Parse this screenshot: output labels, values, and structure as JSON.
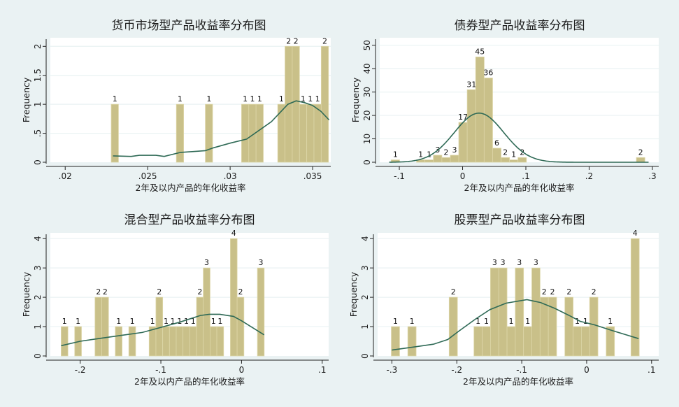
{
  "colors": {
    "background": "#eaf2f3",
    "plot": "#ffffff",
    "bar": "#c9c089",
    "bar_edge": "#ddd6a8",
    "curve": "#2f6a56",
    "grid": "#eaf2f3"
  },
  "chart_data": [
    {
      "type": "bar",
      "title": "货币市场型产品收益率分布图",
      "xlabel": "2年及以内产品的年化收益率",
      "ylabel": "Frequency",
      "xlim": [
        0.0191,
        0.0361
      ],
      "ylim": [
        0,
        2.1
      ],
      "xticks": [
        0.02,
        0.025,
        0.03,
        0.035
      ],
      "xtick_labels": [
        ".02",
        ".025",
        ".03",
        ".035"
      ],
      "yticks": [
        0,
        0.5,
        1,
        1.5,
        2
      ],
      "ytick_labels": [
        "0",
        ".5",
        "1",
        "1.5",
        "2"
      ],
      "bin_start": 0.02279,
      "bin_width": 0.000439,
      "counts": [
        1,
        0,
        0,
        0,
        0,
        0,
        0,
        0,
        0,
        1,
        0,
        0,
        0,
        1,
        0,
        0,
        0,
        0,
        1,
        1,
        1,
        0,
        0,
        1,
        2,
        2,
        1,
        1,
        1,
        2
      ],
      "curve": {
        "kind": "kernel",
        "points": [
          [
            0.0229,
            0.11
          ],
          [
            0.024,
            0.1
          ],
          [
            0.0245,
            0.12
          ],
          [
            0.0255,
            0.12
          ],
          [
            0.026,
            0.1
          ],
          [
            0.027,
            0.17
          ],
          [
            0.028,
            0.19
          ],
          [
            0.0285,
            0.2
          ],
          [
            0.029,
            0.25
          ],
          [
            0.03,
            0.33
          ],
          [
            0.031,
            0.4
          ],
          [
            0.032,
            0.6
          ],
          [
            0.0325,
            0.7
          ],
          [
            0.033,
            0.85
          ],
          [
            0.0335,
            1.0
          ],
          [
            0.034,
            1.06
          ],
          [
            0.0345,
            1.03
          ],
          [
            0.035,
            0.98
          ],
          [
            0.0355,
            0.88
          ],
          [
            0.036,
            0.73
          ]
        ]
      }
    },
    {
      "type": "bar",
      "title": "债券型产品收益率分布图",
      "xlabel": "2年及以内产品的年化收益率",
      "ylabel": "Frequency",
      "xlim": [
        -0.131,
        0.31
      ],
      "ylim": [
        0,
        52
      ],
      "xticks": [
        -0.1,
        0,
        0.1,
        0.2,
        0.3
      ],
      "xtick_labels": [
        "-.1",
        "0",
        ".1",
        ".2",
        ".3"
      ],
      "yticks": [
        0,
        10,
        20,
        30,
        40,
        50
      ],
      "ytick_labels": [
        "0",
        "10",
        "20",
        "30",
        "40",
        "50"
      ],
      "bin_start": -0.113,
      "bin_width": 0.01337,
      "counts": [
        1,
        0,
        0,
        1,
        1,
        3,
        2,
        3,
        17,
        31,
        45,
        36,
        6,
        2,
        1,
        2,
        0,
        0,
        0,
        0,
        0,
        0,
        0,
        0,
        0,
        0,
        0,
        0,
        0,
        2
      ],
      "curve": {
        "kind": "normal",
        "mean": 0.026,
        "sd": 0.039,
        "peak": 21
      }
    },
    {
      "type": "bar",
      "title": "混合型产品收益率分布图",
      "xlabel": "2年及以内产品的年化收益率",
      "ylabel": "Frequency",
      "xlim": [
        -0.237,
        0.108
      ],
      "ylim": [
        0,
        4.1
      ],
      "xticks": [
        -0.2,
        -0.1,
        0,
        0.1
      ],
      "xtick_labels": [
        "-.2",
        "-.1",
        "0",
        ".1"
      ],
      "yticks": [
        0,
        1,
        2,
        3,
        4
      ],
      "ytick_labels": [
        "0",
        "1",
        "2",
        "3",
        "4"
      ],
      "bin_start": -0.2236,
      "bin_width": 0.00839,
      "counts": [
        1,
        0,
        1,
        0,
        0,
        2,
        2,
        0,
        1,
        0,
        1,
        0,
        0,
        1,
        2,
        1,
        1,
        1,
        1,
        1,
        2,
        3,
        1,
        1,
        0,
        4,
        2,
        0,
        0,
        3
      ],
      "curve": {
        "kind": "kernel",
        "points": [
          [
            -0.2236,
            0.35
          ],
          [
            -0.2,
            0.5
          ],
          [
            -0.175,
            0.6
          ],
          [
            -0.149,
            0.7
          ],
          [
            -0.123,
            0.8
          ],
          [
            -0.103,
            0.95
          ],
          [
            -0.077,
            1.15
          ],
          [
            -0.051,
            1.38
          ],
          [
            -0.04,
            1.42
          ],
          [
            -0.027,
            1.42
          ],
          [
            -0.01,
            1.35
          ],
          [
            0,
            1.2
          ],
          [
            0.028,
            0.72
          ]
        ]
      }
    },
    {
      "type": "bar",
      "title": "股票型产品收益率分布图",
      "xlabel": "2年及以内产品的年化收益率",
      "ylabel": "Frequency",
      "xlim": [
        -0.322,
        0.111
      ],
      "ylim": [
        0,
        4.1
      ],
      "xticks": [
        -0.3,
        -0.2,
        -0.1,
        0,
        0.1
      ],
      "xtick_labels": [
        "-.3",
        "-.2",
        "-.1",
        "0",
        ".1"
      ],
      "yticks": [
        0,
        1,
        2,
        3,
        4
      ],
      "ytick_labels": [
        "0",
        "1",
        "2",
        "3",
        "4"
      ],
      "bin_start": -0.3009,
      "bin_width": 0.01273,
      "counts": [
        1,
        0,
        1,
        0,
        0,
        0,
        0,
        2,
        0,
        0,
        1,
        1,
        3,
        3,
        1,
        3,
        1,
        3,
        2,
        2,
        0,
        2,
        1,
        1,
        2,
        0,
        1,
        0,
        0,
        4
      ],
      "curve": {
        "kind": "kernel",
        "points": [
          [
            -0.3,
            0.2
          ],
          [
            -0.268,
            0.3
          ],
          [
            -0.236,
            0.4
          ],
          [
            -0.214,
            0.56
          ],
          [
            -0.196,
            0.86
          ],
          [
            -0.171,
            1.26
          ],
          [
            -0.149,
            1.58
          ],
          [
            -0.124,
            1.8
          ],
          [
            -0.092,
            1.92
          ],
          [
            -0.071,
            1.82
          ],
          [
            -0.049,
            1.62
          ],
          [
            -0.027,
            1.38
          ],
          [
            -0.01,
            1.18
          ],
          [
            0.012,
            1.06
          ],
          [
            0.04,
            0.86
          ],
          [
            0.08,
            0.59
          ]
        ]
      }
    }
  ]
}
